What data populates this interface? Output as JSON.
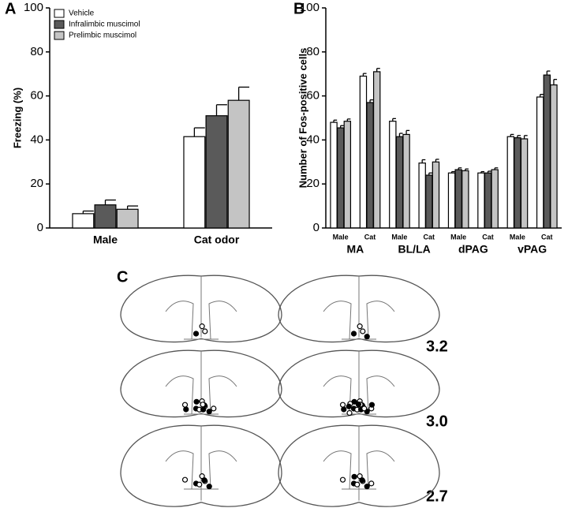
{
  "chart_data": [
    {
      "type": "bar",
      "panel": "A",
      "ylabel": "Freezing (%)",
      "categories": [
        "Male",
        "Cat odor"
      ],
      "series": [
        {
          "name": "Vehicle",
          "color": "#ffffff",
          "values": [
            6.5,
            41.5
          ],
          "errors": [
            1.2,
            4
          ]
        },
        {
          "name": "Infralimbic muscimol",
          "color": "#5a5a5a",
          "values": [
            10.5,
            51
          ],
          "errors": [
            2.2,
            5
          ]
        },
        {
          "name": "Prelimbic muscimol",
          "color": "#c4c4c4",
          "values": [
            8.5,
            58
          ],
          "errors": [
            1.5,
            6
          ]
        }
      ],
      "ylim": [
        0,
        100
      ],
      "yticks": [
        0,
        20,
        40,
        60,
        80,
        100
      ],
      "legend": "upper left"
    },
    {
      "type": "bar",
      "panel": "B",
      "ylabel": "Number of Fos-positive cells",
      "categories": [
        "Male",
        "Cat",
        "Male",
        "Cat",
        "Male",
        "Cat",
        "Male",
        "Cat"
      ],
      "groups": [
        "MA",
        "BL/LA",
        "dPAG",
        "vPAG"
      ],
      "series": [
        {
          "color": "#ffffff",
          "values": [
            48,
            69,
            48.5,
            29.5,
            25,
            25,
            41.5,
            59.5
          ],
          "errors": [
            1,
            1.2,
            1.2,
            1.5,
            0.6,
            0.6,
            1,
            1.2
          ]
        },
        {
          "color": "#5a5a5a",
          "values": [
            45.5,
            57,
            41.5,
            24,
            26.5,
            25,
            41,
            69.5
          ],
          "errors": [
            1,
            1.2,
            1.5,
            1,
            0.8,
            0.8,
            1,
            1.8
          ]
        },
        {
          "color": "#c4c4c4",
          "values": [
            48.5,
            71,
            42.5,
            30,
            26,
            26.5,
            40.5,
            65
          ],
          "errors": [
            1,
            1.5,
            1.8,
            1.2,
            0.8,
            0.8,
            1.5,
            2.5
          ]
        }
      ],
      "ylim": [
        0,
        100
      ],
      "yticks": [
        0,
        20,
        40,
        60,
        80,
        100
      ]
    }
  ],
  "diagram": {
    "panel": "C",
    "levels": [
      "3.2",
      "3.0",
      "2.7"
    ]
  }
}
